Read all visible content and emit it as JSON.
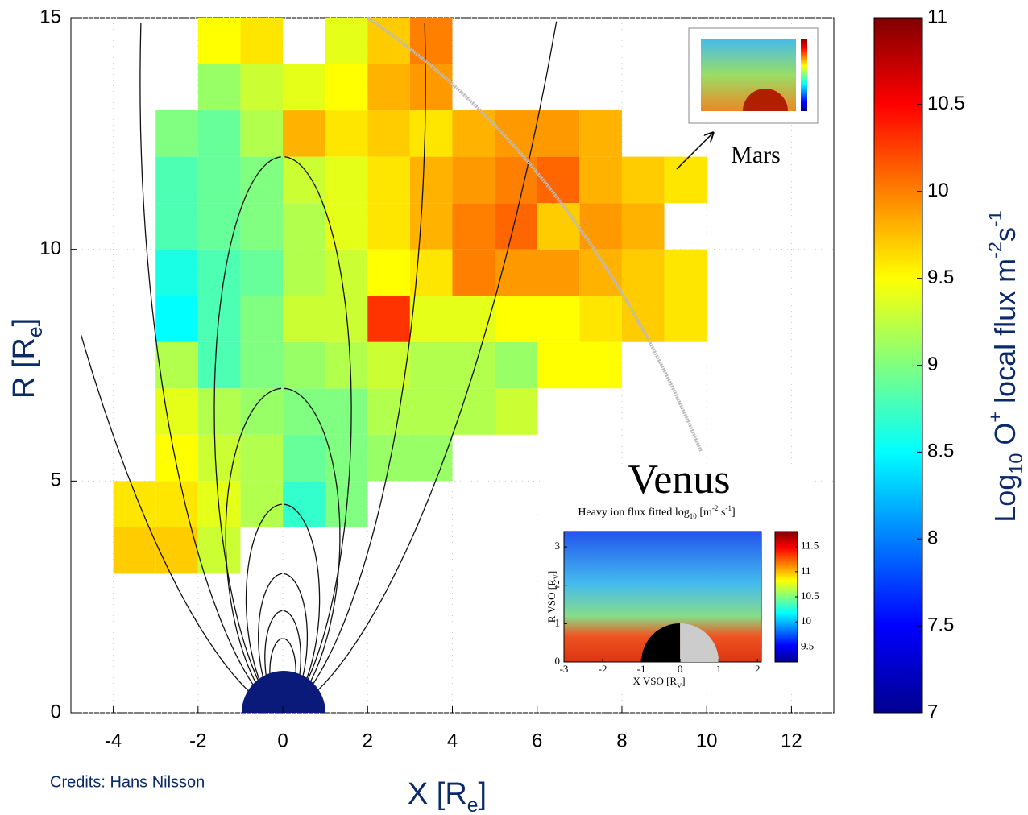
{
  "chart_data": {
    "type": "heatmap",
    "x_label_parts": [
      "X [R",
      "e",
      "]"
    ],
    "y_label_parts": [
      "R [R",
      "e",
      "]"
    ],
    "credits": "Credits:  Hans Nilsson",
    "xlim": [
      -5,
      13
    ],
    "ylim": [
      0,
      15
    ],
    "xticks": [
      -4,
      -2,
      0,
      2,
      4,
      6,
      8,
      10,
      12
    ],
    "yticks": [
      0,
      5,
      10,
      15
    ],
    "grid": true,
    "x_bins": [
      -4,
      -3,
      -2,
      -1,
      0,
      1,
      2,
      3,
      4,
      5,
      6,
      7,
      8,
      9,
      10
    ],
    "y_bins": [
      3,
      4,
      5,
      6,
      7,
      8,
      9,
      10,
      11,
      12,
      13,
      14,
      15
    ],
    "values": [
      [
        9.7,
        9.7,
        9.3,
        null,
        null,
        null,
        null,
        null,
        null,
        null,
        null,
        null,
        null,
        null
      ],
      [
        9.6,
        9.6,
        9.4,
        9.2,
        8.7,
        9.0,
        null,
        null,
        null,
        null,
        null,
        null,
        null,
        null
      ],
      [
        null,
        9.5,
        9.3,
        9.2,
        8.9,
        9.0,
        9.1,
        9.1,
        null,
        null,
        null,
        null,
        null,
        null
      ],
      [
        null,
        9.4,
        9.2,
        9.1,
        9.0,
        9.0,
        9.2,
        9.2,
        9.2,
        9.3,
        null,
        null,
        null,
        null
      ],
      [
        null,
        9.2,
        8.8,
        9.0,
        9.1,
        9.2,
        9.3,
        9.2,
        9.2,
        9.1,
        9.5,
        9.5,
        null,
        null
      ],
      [
        null,
        8.5,
        8.8,
        9.0,
        9.3,
        9.3,
        10.3,
        9.4,
        9.4,
        9.5,
        9.5,
        9.6,
        9.7,
        9.6
      ],
      [
        null,
        8.6,
        8.8,
        8.9,
        9.2,
        9.3,
        9.5,
        9.6,
        10.0,
        9.9,
        9.9,
        9.8,
        9.7,
        9.6
      ],
      [
        null,
        8.8,
        8.9,
        9.0,
        9.2,
        9.4,
        9.6,
        9.8,
        10.0,
        10.1,
        9.7,
        9.9,
        9.8,
        null
      ],
      [
        null,
        8.8,
        8.9,
        9.0,
        9.3,
        9.4,
        9.6,
        9.8,
        9.9,
        10.0,
        10.1,
        9.8,
        9.7,
        9.6
      ],
      [
        null,
        9.0,
        8.9,
        9.2,
        9.8,
        9.6,
        9.7,
        9.6,
        9.8,
        9.9,
        9.9,
        9.8,
        null,
        null
      ],
      [
        null,
        null,
        9.1,
        9.3,
        9.4,
        9.5,
        9.8,
        9.9,
        null,
        null,
        null,
        null,
        null,
        null
      ],
      [
        null,
        null,
        9.5,
        9.6,
        null,
        9.4,
        9.7,
        10.0,
        null,
        null,
        null,
        null,
        null,
        null
      ]
    ],
    "colorbar": {
      "label_parts": [
        "Log",
        "10",
        " O",
        "+",
        " local flux m",
        "-2",
        "s",
        "-1"
      ],
      "lim": [
        7,
        11
      ],
      "ticks": [
        7,
        7.5,
        8,
        8.5,
        9,
        9.5,
        10,
        10.5,
        11
      ]
    },
    "mars_label": "Mars",
    "venus_inset": {
      "title": "Venus",
      "subtitle_parts": [
        "Heavy ion flux fitted log",
        "10",
        " [m",
        "-2",
        " s",
        "-1",
        "]"
      ],
      "xlabel_parts": [
        "X VSO [R",
        "V",
        "]"
      ],
      "ylabel_parts": [
        "R VSO [R",
        "V",
        "]"
      ],
      "xlim": [
        -3,
        2.1
      ],
      "ylim": [
        0,
        3.4
      ],
      "xticks": [
        -3,
        -2,
        -1,
        0,
        1,
        2
      ],
      "yticks": [
        0,
        1,
        2,
        3
      ],
      "cblim": [
        9.2,
        11.8
      ],
      "cbticks": [
        9.5,
        10,
        10.5,
        11,
        11.5
      ]
    }
  }
}
